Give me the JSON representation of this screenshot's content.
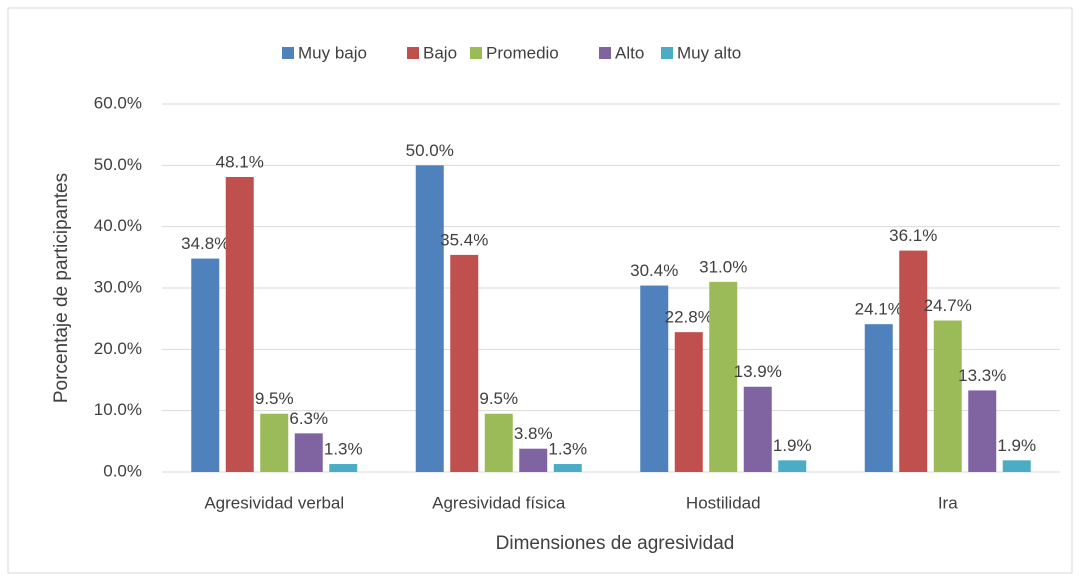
{
  "chart_data": {
    "type": "bar",
    "x_label": "Dimensiones de agresividad",
    "y_label": "Porcentaje de participantes",
    "categories": [
      "Agresividad verbal",
      "Agresividad física",
      "Hostilidad",
      "Ira"
    ],
    "series": [
      {
        "name": "Muy bajo",
        "color": "#4f81bd",
        "values": [
          34.8,
          50.0,
          30.4,
          24.1
        ],
        "value_labels": [
          "34.8%",
          "50.0%",
          "30.4%",
          "24.1%"
        ]
      },
      {
        "name": "Bajo",
        "color": "#c0504d",
        "values": [
          48.1,
          35.4,
          22.8,
          36.1
        ],
        "value_labels": [
          "48.1%",
          "35.4%",
          "22.8%",
          "36.1%"
        ]
      },
      {
        "name": "Promedio",
        "color": "#9bbb59",
        "values": [
          9.5,
          9.5,
          31.0,
          24.7
        ],
        "value_labels": [
          "9.5%",
          "9.5%",
          "31.0%",
          "24.7%"
        ]
      },
      {
        "name": "Alto",
        "color": "#8064a2",
        "values": [
          6.3,
          3.8,
          13.9,
          13.3
        ],
        "value_labels": [
          "6.3%",
          "3.8%",
          "13.9%",
          "13.3%"
        ]
      },
      {
        "name": "Muy alto",
        "color": "#4bacc6",
        "values": [
          1.3,
          1.3,
          1.9,
          1.9
        ],
        "value_labels": [
          "1.3%",
          "1.3%",
          "1.9%",
          "1.9%"
        ]
      }
    ],
    "ylim": [
      0,
      60
    ],
    "yticks": [
      {
        "value": 0,
        "label": "0.0%"
      },
      {
        "value": 10,
        "label": "10.0%"
      },
      {
        "value": 20,
        "label": "20.0%"
      },
      {
        "value": 30,
        "label": "30.0%"
      },
      {
        "value": 40,
        "label": "40.0%"
      },
      {
        "value": 50,
        "label": "50.0%"
      },
      {
        "value": 60,
        "label": "60.0%"
      }
    ],
    "grid": true,
    "legend": "top"
  }
}
